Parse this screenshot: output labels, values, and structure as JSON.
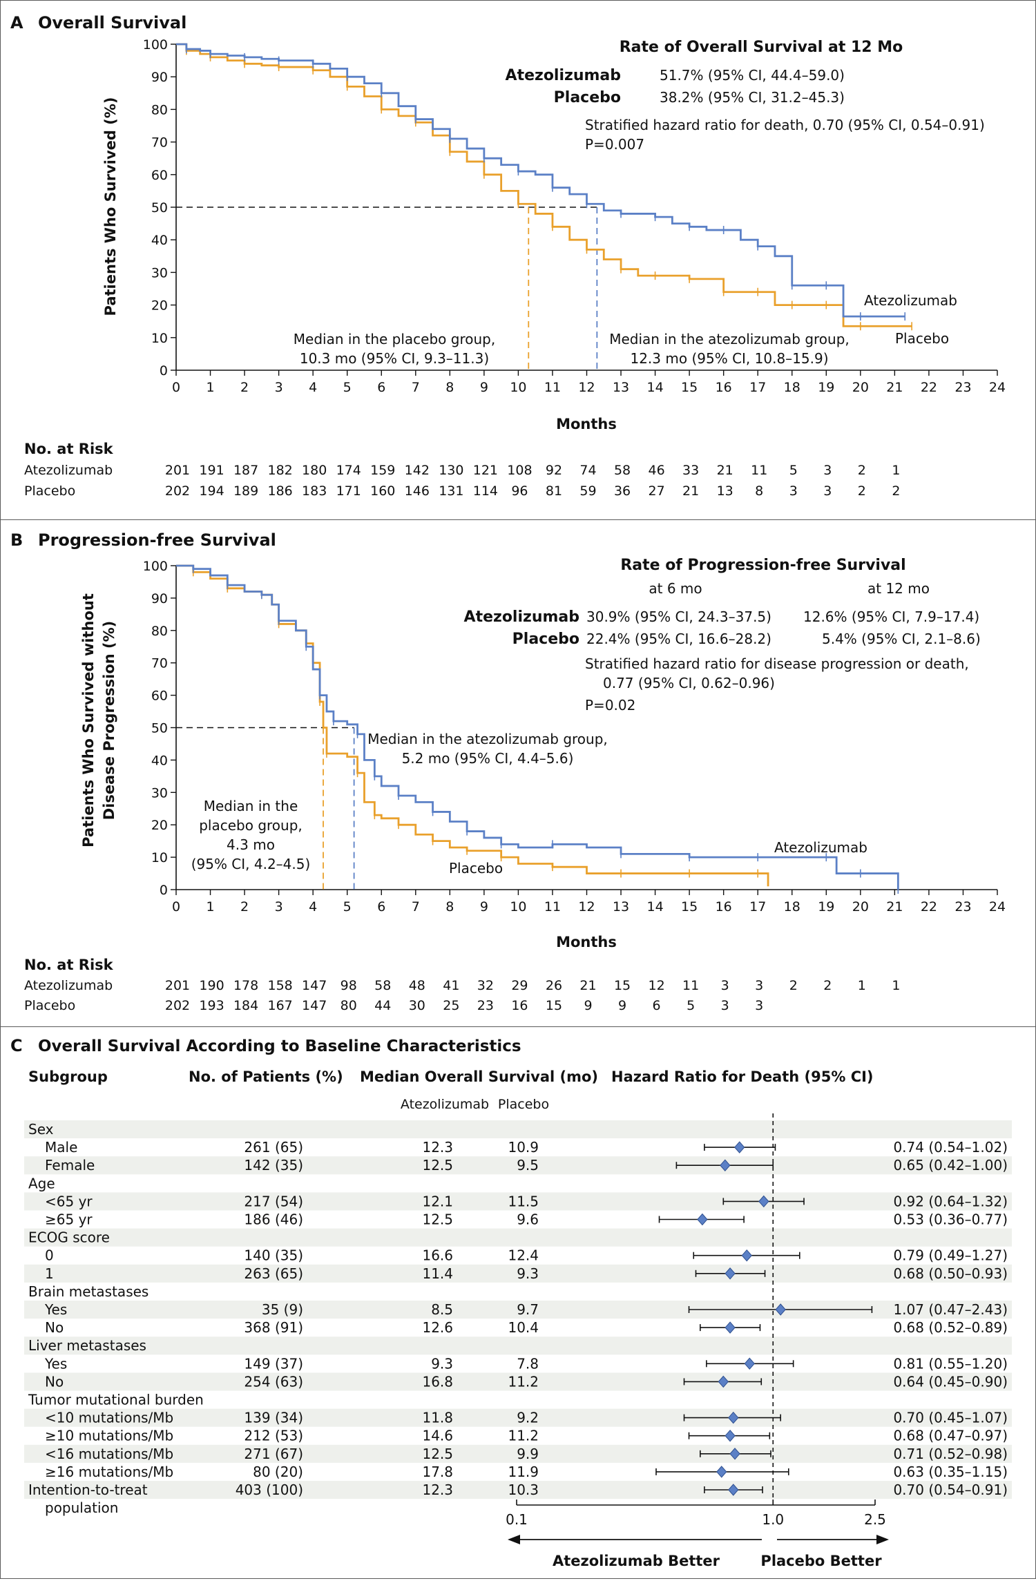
{
  "panel_a": {
    "letter": "A",
    "title": "Overall Survival",
    "ylabel": "Patients Who Survived (%)",
    "xlabel": "Months",
    "rate_heading": "Rate of Overall Survival at 12 Mo",
    "rate_rows": [
      {
        "arm": "Atezolizumab",
        "value": "51.7% (95% CI, 44.4–59.0)"
      },
      {
        "arm": "Placebo",
        "value": "38.2% (95% CI, 31.2–45.3)"
      }
    ],
    "hr_text": "Stratified hazard ratio for death, 0.70 (95% CI, 0.54–0.91)",
    "p_text": "P=0.007",
    "median_placebo": [
      "Median in the placebo group,",
      "10.3 mo (95% CI, 9.3–11.3)"
    ],
    "median_atezo": [
      "Median in the atezolizumab group,",
      "12.3 mo (95% CI, 10.8–15.9)"
    ],
    "label_atezo": "Atezolizumab",
    "label_placebo": "Placebo",
    "risk_heading": "No. at Risk",
    "risk_rows": [
      {
        "arm": "Atezolizumab",
        "values": [
          "201",
          "191",
          "187",
          "182",
          "180",
          "174",
          "159",
          "142",
          "130",
          "121",
          "108",
          "92",
          "74",
          "58",
          "46",
          "33",
          "21",
          "11",
          "5",
          "3",
          "2",
          "1"
        ]
      },
      {
        "arm": "Placebo",
        "values": [
          "202",
          "194",
          "189",
          "186",
          "183",
          "171",
          "160",
          "146",
          "131",
          "114",
          "96",
          "81",
          "59",
          "36",
          "27",
          "21",
          "13",
          "8",
          "3",
          "3",
          "2",
          "2"
        ]
      }
    ]
  },
  "panel_b": {
    "letter": "B",
    "title": "Progression-free Survival",
    "ylabel_lines": [
      "Patients Who Survived without",
      "Disease Progression (%)"
    ],
    "xlabel": "Months",
    "rate_heading": "Rate of Progression-free Survival",
    "col_6": "at 6 mo",
    "col_12": "at 12 mo",
    "rate_rows": [
      {
        "arm": "Atezolizumab",
        "v6": "30.9% (95% CI, 24.3–37.5)",
        "v12": "12.6% (95% CI, 7.9–17.4)"
      },
      {
        "arm": "Placebo",
        "v6": "22.4% (95% CI, 16.6–28.2)",
        "v12": "5.4% (95% CI, 2.1–8.6)"
      }
    ],
    "hr_lines": [
      "Stratified hazard ratio for disease progression or death,",
      "0.77 (95% CI, 0.62–0.96)"
    ],
    "p_text": "P=0.02",
    "median_atezo": [
      "Median in the atezolizumab group,",
      "5.2 mo (95% CI, 4.4–5.6)"
    ],
    "median_placebo": [
      "Median in the",
      "placebo group,",
      "4.3 mo",
      "(95% CI, 4.2–4.5)"
    ],
    "label_atezo": "Atezolizumab",
    "label_placebo": "Placebo",
    "risk_heading": "No. at Risk",
    "risk_rows": [
      {
        "arm": "Atezolizumab",
        "values": [
          "201",
          "190",
          "178",
          "158",
          "147",
          "98",
          "58",
          "48",
          "41",
          "32",
          "29",
          "26",
          "21",
          "15",
          "12",
          "11",
          "3",
          "3",
          "2",
          "2",
          "1",
          "1"
        ]
      },
      {
        "arm": "Placebo",
        "values": [
          "202",
          "193",
          "184",
          "167",
          "147",
          "80",
          "44",
          "30",
          "25",
          "23",
          "16",
          "15",
          "9",
          "9",
          "6",
          "5",
          "3",
          "3",
          "",
          "",
          "",
          ""
        ]
      }
    ]
  },
  "panel_c": {
    "letter": "C",
    "title": "Overall Survival According to Baseline Characteristics",
    "headers": {
      "subgroup": "Subgroup",
      "patients": "No. of Patients (%)",
      "median": "Median Overall Survival (mo)",
      "atezo": "Atezolizumab",
      "placebo": "Placebo",
      "hr": "Hazard Ratio for Death (95% CI)"
    },
    "axis_ticks": [
      "0.1",
      "1.0",
      "2.5"
    ],
    "better_left": "Atezolizumab Better",
    "better_right": "Placebo Better"
  },
  "colors": {
    "atezolizumab": "#5b80c6",
    "placebo": "#e9a02b",
    "shade": "#eef0ec",
    "border": "#5a5a5a"
  },
  "chart_data": [
    {
      "type": "line",
      "title": "Overall Survival",
      "xlabel": "Months",
      "ylabel": "Patients Who Survived (%)",
      "xlim": [
        0,
        24
      ],
      "ylim": [
        0,
        100
      ],
      "x_ticks": [
        0,
        1,
        2,
        3,
        4,
        5,
        6,
        7,
        8,
        9,
        10,
        11,
        12,
        13,
        14,
        15,
        16,
        17,
        18,
        19,
        20,
        21,
        22,
        23,
        24
      ],
      "y_ticks": [
        0,
        10,
        20,
        30,
        40,
        50,
        60,
        70,
        80,
        90,
        100
      ],
      "grid": false,
      "series": [
        {
          "name": "Atezolizumab",
          "x": [
            0,
            0.3,
            0.7,
            1,
            1.5,
            2,
            2.5,
            3,
            3.5,
            4,
            4.5,
            5,
            5.5,
            6,
            6.5,
            7,
            7.5,
            8,
            8.5,
            9,
            9.5,
            10,
            10.5,
            11,
            11.5,
            12,
            12.5,
            13,
            13.5,
            14,
            14.5,
            15,
            15.5,
            16,
            16.5,
            17,
            17.5,
            18,
            18.5,
            19,
            19.5,
            20,
            21,
            21.3
          ],
          "y": [
            100,
            98.5,
            98,
            97,
            96.5,
            96,
            95.5,
            95,
            95,
            94,
            92.5,
            90,
            88,
            85,
            81,
            77,
            74,
            71,
            68,
            65,
            63,
            61,
            60,
            56,
            54,
            51,
            49,
            48,
            48,
            47,
            45,
            44,
            43,
            43,
            40,
            38,
            35,
            26,
            26,
            26,
            16.5,
            16.5,
            16.5,
            16.5
          ]
        },
        {
          "name": "Placebo",
          "x": [
            0,
            0.3,
            0.7,
            1,
            1.5,
            2,
            2.5,
            3,
            3.5,
            4,
            4.5,
            5,
            5.5,
            6,
            6.5,
            7,
            7.5,
            8,
            8.5,
            9,
            9.5,
            10,
            10.5,
            11,
            11.5,
            12,
            12.5,
            13,
            13.5,
            14,
            14.5,
            15,
            15.5,
            16,
            16.5,
            17,
            17.5,
            18,
            18.5,
            19,
            19.5,
            20,
            21,
            21.5
          ],
          "y": [
            100,
            98,
            97,
            96,
            95,
            94,
            93.5,
            93,
            93,
            92,
            90,
            87,
            84,
            80,
            78,
            76,
            72,
            67,
            64,
            60,
            55,
            51,
            48,
            44,
            40,
            37,
            34,
            31,
            29,
            29,
            29,
            28,
            28,
            24,
            24,
            24,
            20,
            20,
            20,
            20,
            13.5,
            13.5,
            13.5,
            13.5
          ]
        }
      ],
      "medians": {
        "Atezolizumab": 12.3,
        "Placebo": 10.3
      }
    },
    {
      "type": "line",
      "title": "Progression-free Survival",
      "xlabel": "Months",
      "ylabel": "Patients Who Survived without Disease Progression (%)",
      "xlim": [
        0,
        24
      ],
      "ylim": [
        0,
        100
      ],
      "x_ticks": [
        0,
        1,
        2,
        3,
        4,
        5,
        6,
        7,
        8,
        9,
        10,
        11,
        12,
        13,
        14,
        15,
        16,
        17,
        18,
        19,
        20,
        21,
        22,
        23,
        24
      ],
      "y_ticks": [
        0,
        10,
        20,
        30,
        40,
        50,
        60,
        70,
        80,
        90,
        100
      ],
      "grid": false,
      "series": [
        {
          "name": "Atezolizumab",
          "x": [
            0,
            0.5,
            1,
            1.5,
            2,
            2.5,
            2.8,
            3,
            3.5,
            3.8,
            4,
            4.2,
            4.4,
            4.6,
            5,
            5.3,
            5.5,
            5.8,
            6,
            6.5,
            7,
            7.5,
            8,
            8.5,
            9,
            9.5,
            10,
            11,
            12,
            13,
            14,
            15,
            16,
            17,
            18,
            19,
            19.3,
            20,
            21,
            21.1
          ],
          "y": [
            100,
            99,
            97,
            94,
            92,
            91,
            88,
            83,
            80,
            75,
            68,
            60,
            55,
            52,
            51,
            48,
            40,
            35,
            32,
            29,
            27,
            24,
            21,
            18,
            16,
            14,
            13,
            14,
            13,
            11,
            11,
            10,
            10,
            10,
            10,
            10,
            5,
            5,
            5,
            0
          ]
        },
        {
          "name": "Placebo",
          "x": [
            0,
            0.5,
            1,
            1.5,
            2,
            2.5,
            2.8,
            3,
            3.5,
            3.8,
            4,
            4.2,
            4.3,
            4.4,
            5,
            5.3,
            5.5,
            5.8,
            6,
            6.5,
            7,
            7.5,
            8,
            8.5,
            9,
            9.5,
            10,
            11,
            12,
            13,
            14,
            15,
            16,
            17,
            17.3
          ],
          "y": [
            100,
            98,
            96,
            93,
            92,
            91,
            88,
            82,
            80,
            76,
            70,
            58,
            50,
            42,
            41,
            36,
            27,
            23,
            22,
            20,
            17,
            15,
            13,
            12,
            12,
            10,
            8,
            7,
            5,
            5,
            5,
            5,
            5,
            5,
            1
          ]
        }
      ],
      "medians": {
        "Atezolizumab": 5.2,
        "Placebo": 4.3
      }
    },
    {
      "type": "scatter",
      "title": "Overall Survival According to Baseline Characteristics",
      "xlabel": "Hazard Ratio for Death (95% CI)",
      "x_scale": "log",
      "xlim": [
        0.1,
        2.5
      ],
      "x_ticks": [
        0.1,
        1.0,
        2.5
      ],
      "reference_line": 1.0,
      "rows": [
        {
          "label": "Sex",
          "header": true
        },
        {
          "label": "Male",
          "n": "261 (65)",
          "atezo": "12.3",
          "placebo": "10.9",
          "hr": 0.74,
          "lo": 0.54,
          "hi": 1.02,
          "hr_text": "0.74 (0.54–1.02)"
        },
        {
          "label": "Female",
          "n": "142 (35)",
          "atezo": "12.5",
          "placebo": "9.5",
          "hr": 0.65,
          "lo": 0.42,
          "hi": 1.0,
          "hr_text": "0.65 (0.42–1.00)"
        },
        {
          "label": "Age",
          "header": true
        },
        {
          "label": "<65 yr",
          "n": "217 (54)",
          "atezo": "12.1",
          "placebo": "11.5",
          "hr": 0.92,
          "lo": 0.64,
          "hi": 1.32,
          "hr_text": "0.92 (0.64–1.32)"
        },
        {
          "label": "≥65 yr",
          "n": "186 (46)",
          "atezo": "12.5",
          "placebo": "9.6",
          "hr": 0.53,
          "lo": 0.36,
          "hi": 0.77,
          "hr_text": "0.53 (0.36–0.77)"
        },
        {
          "label": "ECOG score",
          "header": true
        },
        {
          "label": "0",
          "n": "140 (35)",
          "atezo": "16.6",
          "placebo": "12.4",
          "hr": 0.79,
          "lo": 0.49,
          "hi": 1.27,
          "hr_text": "0.79 (0.49–1.27)"
        },
        {
          "label": "1",
          "n": "263 (65)",
          "atezo": "11.4",
          "placebo": "9.3",
          "hr": 0.68,
          "lo": 0.5,
          "hi": 0.93,
          "hr_text": "0.68 (0.50–0.93)"
        },
        {
          "label": "Brain metastases",
          "header": true
        },
        {
          "label": "Yes",
          "n": "35 (9)",
          "atezo": "8.5",
          "placebo": "9.7",
          "hr": 1.07,
          "lo": 0.47,
          "hi": 2.43,
          "hr_text": "1.07 (0.47–2.43)"
        },
        {
          "label": "No",
          "n": "368 (91)",
          "atezo": "12.6",
          "placebo": "10.4",
          "hr": 0.68,
          "lo": 0.52,
          "hi": 0.89,
          "hr_text": "0.68 (0.52–0.89)"
        },
        {
          "label": "Liver metastases",
          "header": true
        },
        {
          "label": "Yes",
          "n": "149 (37)",
          "atezo": "9.3",
          "placebo": "7.8",
          "hr": 0.81,
          "lo": 0.55,
          "hi": 1.2,
          "hr_text": "0.81 (0.55–1.20)"
        },
        {
          "label": "No",
          "n": "254 (63)",
          "atezo": "16.8",
          "placebo": "11.2",
          "hr": 0.64,
          "lo": 0.45,
          "hi": 0.9,
          "hr_text": "0.64 (0.45–0.90)"
        },
        {
          "label": "Tumor mutational burden",
          "header": true
        },
        {
          "label": "<10 mutations/Mb",
          "n": "139 (34)",
          "atezo": "11.8",
          "placebo": "9.2",
          "hr": 0.7,
          "lo": 0.45,
          "hi": 1.07,
          "hr_text": "0.70 (0.45–1.07)"
        },
        {
          "label": "≥10 mutations/Mb",
          "n": "212 (53)",
          "atezo": "14.6",
          "placebo": "11.2",
          "hr": 0.68,
          "lo": 0.47,
          "hi": 0.97,
          "hr_text": "0.68 (0.47–0.97)"
        },
        {
          "label": "<16 mutations/Mb",
          "n": "271 (67)",
          "atezo": "12.5",
          "placebo": "9.9",
          "hr": 0.71,
          "lo": 0.52,
          "hi": 0.98,
          "hr_text": "0.71 (0.52–0.98)"
        },
        {
          "label": "≥16 mutations/Mb",
          "n": "80 (20)",
          "atezo": "17.8",
          "placebo": "11.9",
          "hr": 0.63,
          "lo": 0.35,
          "hi": 1.15,
          "hr_text": "0.63 (0.35–1.15)"
        },
        {
          "label": "Intention-to-treat",
          "label2": "population",
          "toplevel": true,
          "n": "403 (100)",
          "atezo": "12.3",
          "placebo": "10.3",
          "hr": 0.7,
          "lo": 0.54,
          "hi": 0.91,
          "hr_text": "0.70 (0.54–0.91)"
        }
      ]
    }
  ]
}
